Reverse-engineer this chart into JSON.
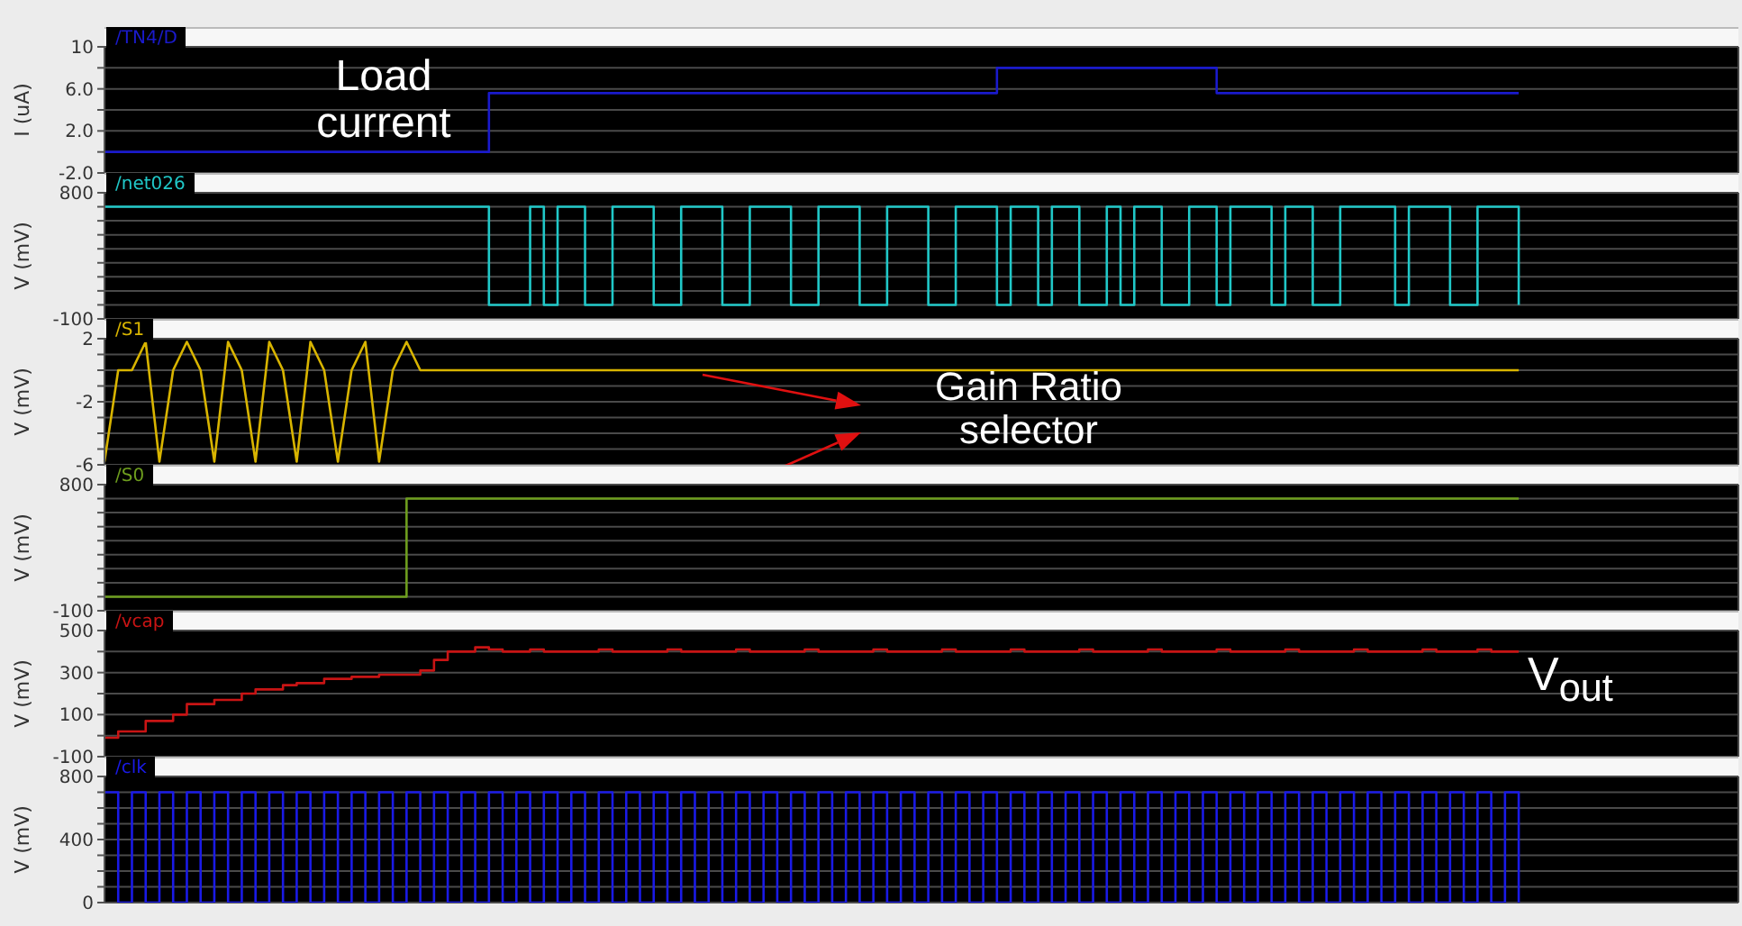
{
  "chart_data": [
    {
      "type": "step",
      "title": "/TN4/D",
      "ylabel": "I (uA)",
      "color": "#1a1acc",
      "grid": true,
      "tick_labels": "y",
      "ylim": [
        -2,
        10
      ],
      "yticks": [
        {
          "value": -2,
          "label": "-2.0"
        },
        {
          "value": 0,
          "label": null
        },
        {
          "value": 2,
          "label": "2.0"
        },
        {
          "value": 4,
          "label": null
        },
        {
          "value": 6,
          "label": "6.0"
        },
        {
          "value": 8,
          "label": null
        },
        10
      ],
      "annotations": [
        "Load current"
      ],
      "categories": [
        null,
        null,
        null,
        null,
        null,
        null,
        null,
        null,
        null,
        null,
        null,
        null,
        null,
        null,
        null,
        null,
        null,
        null,
        null,
        null,
        null,
        null,
        null,
        null,
        null,
        null,
        null,
        null,
        null,
        null,
        null,
        null,
        null,
        null,
        null,
        null,
        null,
        null,
        null,
        null,
        null,
        null,
        null,
        null,
        null,
        null,
        null,
        null,
        null,
        null,
        null,
        null,
        null,
        null,
        null,
        null,
        null,
        null,
        null,
        null,
        null,
        null,
        null,
        null,
        null,
        null,
        null,
        null,
        null,
        null,
        null,
        null,
        null,
        null,
        null,
        null,
        null,
        null,
        null,
        null,
        null,
        null,
        null,
        null,
        null,
        null,
        null,
        null,
        null,
        null,
        null,
        null,
        null,
        null,
        null,
        null,
        null,
        null,
        null,
        null,
        null,
        null,
        null,
        null,
        null,
        null,
        null,
        null,
        null,
        null,
        null,
        null,
        null,
        null,
        null,
        null,
        null,
        null,
        null,
        null
      ],
      "values": [
        0,
        0,
        0,
        0,
        0,
        0,
        0,
        0,
        0,
        0,
        0,
        0,
        0,
        0,
        0,
        0,
        0,
        0,
        0,
        0,
        0,
        0,
        0,
        0,
        0,
        0,
        0,
        0,
        5.6,
        5.6,
        5.6,
        5.6,
        5.6,
        5.6,
        5.6,
        5.6,
        5.6,
        5.6,
        5.6,
        5.6,
        5.6,
        5.6,
        5.6,
        5.6,
        5.6,
        5.6,
        5.6,
        5.6,
        5.6,
        5.6,
        5.6,
        5.6,
        5.6,
        5.6,
        5.6,
        5.6,
        5.6,
        5.6,
        5.6,
        5.6,
        5.6,
        5.6,
        5.6,
        5.6,
        5.6,
        8,
        8,
        8,
        8,
        8,
        8,
        8,
        8,
        8,
        8,
        8,
        8,
        8,
        8,
        8,
        8,
        5.6,
        5.6,
        5.6,
        5.6,
        5.6,
        5.6,
        5.6,
        5.6,
        5.6,
        5.6,
        5.6,
        5.6,
        5.6,
        5.6,
        5.6,
        5.6,
        5.6,
        5.6,
        5.6,
        5.6,
        5.6,
        5.6,
        5.6,
        null,
        null,
        null,
        null,
        null,
        null,
        null,
        null,
        null,
        null,
        null,
        null,
        null,
        null,
        null,
        null
      ]
    },
    {
      "type": "step",
      "title": "/net026",
      "ylabel": "V (mV)",
      "color": "#20c8c8",
      "grid": true,
      "tick_labels": "y",
      "ylim": [
        -100,
        800
      ],
      "yticks": [
        -100,
        {
          "value": 0,
          "label": null
        },
        {
          "value": 100,
          "label": null
        },
        {
          "value": 200,
          "label": null
        },
        {
          "value": 300,
          "label": null
        },
        {
          "value": 400,
          "label": null
        },
        {
          "value": 500,
          "label": null
        },
        {
          "value": 600,
          "label": null
        },
        {
          "value": 700,
          "label": null
        },
        800
      ],
      "categories": [
        null,
        null,
        null,
        null,
        null,
        null,
        null,
        null,
        null,
        null,
        null,
        null,
        null,
        null,
        null,
        null,
        null,
        null,
        null,
        null,
        null,
        null,
        null,
        null,
        null,
        null,
        null,
        null,
        null,
        null,
        null,
        null,
        null,
        null,
        null,
        null,
        null,
        null,
        null,
        null,
        null,
        null,
        null,
        null,
        null,
        null,
        null,
        null,
        null,
        null,
        null,
        null,
        null,
        null,
        null,
        null,
        null,
        null,
        null,
        null,
        null,
        null,
        null,
        null,
        null,
        null,
        null,
        null,
        null,
        null,
        null,
        null,
        null,
        null,
        null,
        null,
        null,
        null,
        null,
        null,
        null,
        null,
        null,
        null,
        null,
        null,
        null,
        null,
        null,
        null,
        null,
        null,
        null,
        null,
        null,
        null,
        null,
        null,
        null,
        null,
        null,
        null,
        null,
        null,
        null,
        null,
        null,
        null,
        null,
        null,
        null,
        null,
        null,
        null,
        null,
        null,
        null,
        null,
        null,
        null
      ],
      "values": [
        700,
        700,
        700,
        700,
        700,
        700,
        700,
        700,
        700,
        700,
        700,
        700,
        700,
        700,
        700,
        700,
        700,
        700,
        700,
        700,
        700,
        700,
        700,
        700,
        700,
        700,
        700,
        700,
        0,
        0,
        0,
        700,
        0,
        700,
        700,
        0,
        0,
        700,
        700,
        700,
        0,
        0,
        700,
        700,
        700,
        0,
        0,
        700,
        700,
        700,
        0,
        0,
        700,
        700,
        700,
        0,
        0,
        700,
        700,
        700,
        0,
        0,
        700,
        700,
        700,
        0,
        700,
        700,
        0,
        700,
        700,
        0,
        0,
        700,
        0,
        700,
        700,
        0,
        0,
        700,
        700,
        0,
        700,
        700,
        700,
        0,
        700,
        700,
        0,
        0,
        700,
        700,
        700,
        700,
        0,
        700,
        700,
        700,
        0,
        0,
        700,
        700,
        700,
        0,
        null,
        null,
        null,
        null,
        null,
        null,
        null,
        null,
        null,
        null,
        null,
        null,
        null,
        null,
        null,
        null
      ]
    },
    {
      "type": "line",
      "title": "/S1",
      "ylabel": "V (mV)",
      "color": "#d8b400",
      "grid": true,
      "tick_labels": "y",
      "ylim": [
        -6,
        2
      ],
      "yticks": [
        -6,
        {
          "value": -5,
          "label": null
        },
        {
          "value": -4,
          "label": null
        },
        {
          "value": -3,
          "label": null
        },
        -2,
        {
          "value": -1,
          "label": null
        },
        {
          "value": 0,
          "label": null
        },
        {
          "value": 1,
          "label": null
        },
        2
      ],
      "annotations": [
        "Gain Ratio selector"
      ],
      "categories": [
        null,
        null,
        null,
        null,
        null,
        null,
        null,
        null,
        null,
        null,
        null,
        null,
        null,
        null,
        null,
        null,
        null,
        null,
        null,
        null,
        null,
        null,
        null,
        null,
        null,
        null,
        null,
        null,
        null,
        null,
        null,
        null,
        null,
        null,
        null,
        null,
        null,
        null,
        null,
        null,
        null,
        null,
        null,
        null,
        null,
        null,
        null,
        null,
        null,
        null,
        null,
        null,
        null,
        null,
        null,
        null,
        null,
        null,
        null,
        null,
        null,
        null,
        null,
        null,
        null,
        null,
        null,
        null,
        null,
        null,
        null,
        null,
        null,
        null,
        null,
        null,
        null,
        null,
        null,
        null,
        null,
        null,
        null,
        null,
        null,
        null,
        null,
        null,
        null,
        null,
        null,
        null,
        null,
        null,
        null,
        null,
        null,
        null,
        null,
        null,
        null,
        null,
        null,
        null,
        null,
        null,
        null,
        null,
        null,
        null,
        null,
        null,
        null,
        null,
        null,
        null,
        null,
        null,
        null,
        null
      ],
      "values": [
        -5.8,
        0,
        0,
        1.8,
        -5.8,
        0,
        1.8,
        0,
        -5.8,
        1.8,
        0,
        -5.8,
        1.8,
        0,
        -5.8,
        1.8,
        0,
        -5.8,
        0,
        1.8,
        -5.8,
        0,
        1.8,
        0,
        0,
        0,
        0,
        0,
        0,
        0,
        0,
        0,
        0,
        0,
        0,
        0,
        0,
        0,
        0,
        0,
        0,
        0,
        0,
        0,
        0,
        0,
        0,
        0,
        0,
        0,
        0,
        0,
        0,
        0,
        0,
        0,
        0,
        0,
        0,
        0,
        0,
        0,
        0,
        0,
        0,
        0,
        0,
        0,
        0,
        0,
        0,
        0,
        0,
        0,
        0,
        0,
        0,
        0,
        0,
        0,
        0,
        0,
        0,
        0,
        0,
        0,
        0,
        0,
        0,
        0,
        0,
        0,
        0,
        0,
        0,
        0,
        0,
        0,
        0,
        0,
        0,
        0,
        0,
        0,
        null,
        null,
        null,
        null,
        null,
        null,
        null,
        null,
        null,
        null,
        null,
        null,
        null,
        null,
        null,
        null
      ]
    },
    {
      "type": "step",
      "title": "/S0",
      "ylabel": "V (mV)",
      "color": "#6e9e1e",
      "grid": true,
      "tick_labels": "y",
      "ylim": [
        -100,
        800
      ],
      "yticks": [
        -100,
        {
          "value": 0,
          "label": null
        },
        {
          "value": 100,
          "label": null
        },
        {
          "value": 200,
          "label": null
        },
        {
          "value": 300,
          "label": null
        },
        {
          "value": 400,
          "label": null
        },
        {
          "value": 500,
          "label": null
        },
        {
          "value": 600,
          "label": null
        },
        {
          "value": 700,
          "label": null
        },
        800
      ],
      "categories": [
        null,
        null,
        null,
        null,
        null,
        null,
        null,
        null,
        null,
        null,
        null,
        null,
        null,
        null,
        null,
        null,
        null,
        null,
        null,
        null,
        null,
        null,
        null,
        null,
        null,
        null,
        null,
        null,
        null,
        null,
        null,
        null,
        null,
        null,
        null,
        null,
        null,
        null,
        null,
        null,
        null,
        null,
        null,
        null,
        null,
        null,
        null,
        null,
        null,
        null,
        null,
        null,
        null,
        null,
        null,
        null,
        null,
        null,
        null,
        null,
        null,
        null,
        null,
        null,
        null,
        null,
        null,
        null,
        null,
        null,
        null,
        null,
        null,
        null,
        null,
        null,
        null,
        null,
        null,
        null,
        null,
        null,
        null,
        null,
        null,
        null,
        null,
        null,
        null,
        null,
        null,
        null,
        null,
        null,
        null,
        null,
        null,
        null,
        null,
        null,
        null,
        null,
        null,
        null,
        null,
        null,
        null,
        null,
        null,
        null,
        null,
        null,
        null,
        null,
        null,
        null,
        null,
        null,
        null,
        null
      ],
      "values": [
        0,
        0,
        0,
        0,
        0,
        0,
        0,
        0,
        0,
        0,
        0,
        0,
        0,
        0,
        0,
        0,
        0,
        0,
        0,
        0,
        0,
        0,
        700,
        700,
        700,
        700,
        700,
        700,
        700,
        700,
        700,
        700,
        700,
        700,
        700,
        700,
        700,
        700,
        700,
        700,
        700,
        700,
        700,
        700,
        700,
        700,
        700,
        700,
        700,
        700,
        700,
        700,
        700,
        700,
        700,
        700,
        700,
        700,
        700,
        700,
        700,
        700,
        700,
        700,
        700,
        700,
        700,
        700,
        700,
        700,
        700,
        700,
        700,
        700,
        700,
        700,
        700,
        700,
        700,
        700,
        700,
        700,
        700,
        700,
        700,
        700,
        700,
        700,
        700,
        700,
        700,
        700,
        700,
        700,
        700,
        700,
        700,
        700,
        700,
        700,
        700,
        700,
        700,
        700,
        null,
        null,
        null,
        null,
        null,
        null,
        null,
        null,
        null,
        null,
        null,
        null,
        null,
        null,
        null,
        null
      ]
    },
    {
      "type": "step",
      "title": "/vcap",
      "ylabel": "V (mV)",
      "color": "#c81414",
      "grid": true,
      "tick_labels": "y",
      "ylim": [
        -100,
        500
      ],
      "yticks": [
        -100,
        {
          "value": 0,
          "label": null
        },
        100,
        {
          "value": 200,
          "label": null
        },
        300,
        {
          "value": 400,
          "label": null
        },
        500
      ],
      "annotations": [
        "V$_{out}$"
      ],
      "categories": [
        null,
        null,
        null,
        null,
        null,
        null,
        null,
        null,
        null,
        null,
        null,
        null,
        null,
        null,
        null,
        null,
        null,
        null,
        null,
        null,
        null,
        null,
        null,
        null,
        null,
        null,
        null,
        null,
        null,
        null,
        null,
        null,
        null,
        null,
        null,
        null,
        null,
        null,
        null,
        null,
        null,
        null,
        null,
        null,
        null,
        null,
        null,
        null,
        null,
        null,
        null,
        null,
        null,
        null,
        null,
        null,
        null,
        null,
        null,
        null,
        null,
        null,
        null,
        null,
        null,
        null,
        null,
        null,
        null,
        null,
        null,
        null,
        null,
        null,
        null,
        null,
        null,
        null,
        null,
        null,
        null,
        null,
        null,
        null,
        null,
        null,
        null,
        null,
        null,
        null,
        null,
        null,
        null,
        null,
        null,
        null,
        null,
        null,
        null,
        null,
        null,
        null,
        null,
        null,
        null,
        null,
        null,
        null,
        null,
        null,
        null,
        null,
        null,
        null,
        null,
        null,
        null,
        null,
        null,
        null
      ],
      "values": [
        -10,
        20,
        20,
        70,
        70,
        100,
        150,
        150,
        170,
        170,
        200,
        220,
        220,
        240,
        250,
        250,
        270,
        270,
        280,
        280,
        290,
        290,
        290,
        310,
        360,
        400,
        400,
        420,
        410,
        400,
        400,
        410,
        400,
        400,
        400,
        400,
        410,
        400,
        400,
        400,
        400,
        410,
        400,
        400,
        400,
        400,
        410,
        400,
        400,
        400,
        400,
        410,
        400,
        400,
        400,
        400,
        410,
        400,
        400,
        400,
        400,
        410,
        400,
        400,
        400,
        400,
        410,
        400,
        400,
        400,
        400,
        410,
        400,
        400,
        400,
        400,
        410,
        400,
        400,
        400,
        400,
        410,
        400,
        400,
        400,
        400,
        410,
        400,
        400,
        400,
        400,
        410,
        400,
        400,
        400,
        400,
        410,
        400,
        400,
        400,
        410,
        400,
        400,
        400,
        null,
        null,
        null,
        null,
        null,
        null,
        null,
        null,
        null,
        null,
        null,
        null,
        null,
        null,
        null,
        null
      ]
    },
    {
      "type": "step",
      "title": "/clk",
      "ylabel": "V (mV)",
      "color": "#1a1ae6",
      "grid": true,
      "tick_labels": "y",
      "ylim": [
        0,
        800
      ],
      "yticks": [
        0,
        {
          "value": 100,
          "label": null
        },
        {
          "value": 200,
          "label": null
        },
        {
          "value": 300,
          "label": null
        },
        400,
        {
          "value": 500,
          "label": null
        },
        {
          "value": 600,
          "label": null
        },
        {
          "value": 700,
          "label": null
        },
        800
      ],
      "categories": [
        null,
        null,
        null,
        null,
        null,
        null,
        null,
        null,
        null,
        null,
        null,
        null,
        null,
        null,
        null,
        null,
        null,
        null,
        null,
        null,
        null,
        null,
        null,
        null,
        null,
        null,
        null,
        null,
        null,
        null,
        null,
        null,
        null,
        null,
        null,
        null,
        null,
        null,
        null,
        null,
        null,
        null,
        null,
        null,
        null,
        null,
        null,
        null,
        null,
        null,
        null,
        null,
        null,
        null,
        null,
        null,
        null,
        null,
        null,
        null,
        null,
        null,
        null,
        null,
        null,
        null,
        null,
        null,
        null,
        null,
        null,
        null,
        null,
        null,
        null,
        null,
        null,
        null,
        null,
        null,
        null,
        null,
        null,
        null,
        null,
        null,
        null,
        null,
        null,
        null,
        null,
        null,
        null,
        null,
        null,
        null,
        null,
        null,
        null,
        null,
        null,
        null,
        null,
        null,
        null,
        null,
        null,
        null,
        null,
        null,
        null,
        null,
        null,
        null,
        null,
        null,
        null,
        null,
        null,
        null
      ],
      "values": [
        700,
        0,
        700,
        0,
        700,
        0,
        700,
        0,
        700,
        0,
        700,
        0,
        700,
        0,
        700,
        0,
        700,
        0,
        700,
        0,
        700,
        0,
        700,
        0,
        700,
        0,
        700,
        0,
        700,
        0,
        700,
        0,
        700,
        0,
        700,
        0,
        700,
        0,
        700,
        0,
        700,
        0,
        700,
        0,
        700,
        0,
        700,
        0,
        700,
        0,
        700,
        0,
        700,
        0,
        700,
        0,
        700,
        0,
        700,
        0,
        700,
        0,
        700,
        0,
        700,
        0,
        700,
        0,
        700,
        0,
        700,
        0,
        700,
        0,
        700,
        0,
        700,
        0,
        700,
        0,
        700,
        0,
        700,
        0,
        700,
        0,
        700,
        0,
        700,
        0,
        700,
        0,
        700,
        0,
        700,
        0,
        700,
        0,
        700,
        0,
        700,
        0,
        700,
        0,
        null,
        null,
        null,
        null,
        null,
        null,
        null,
        null,
        null,
        null,
        null,
        null,
        null,
        null,
        null,
        null
      ]
    }
  ]
}
